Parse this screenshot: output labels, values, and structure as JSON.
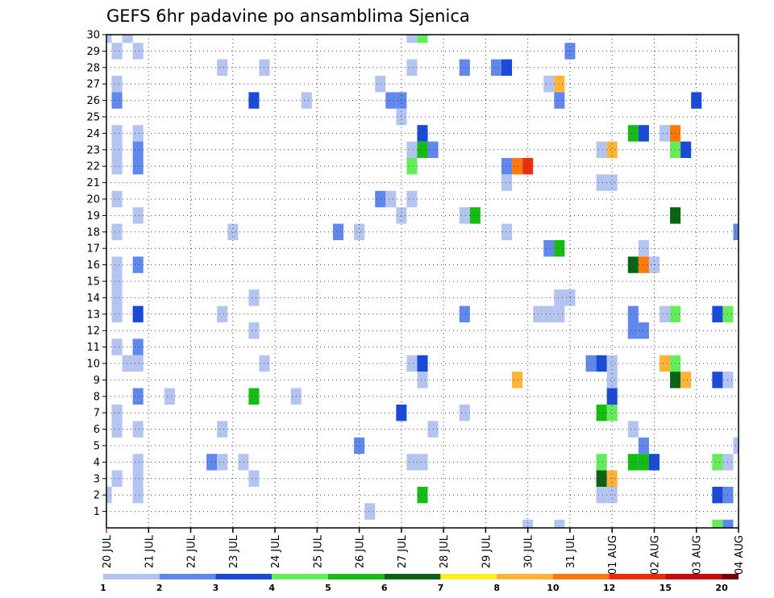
{
  "chart_data": {
    "type": "heatmap",
    "title": "GEFS 6hr padavine po ansamblima Sjenica",
    "xlabel": "",
    "ylabel": "",
    "x_tick_labels": [
      "20 JUL",
      "21 JUL",
      "22 JUL",
      "23 JUL",
      "24 JUL",
      "25 JUL",
      "26 JUL",
      "27 JUL",
      "28 JUL",
      "29 JUL",
      "30 JUL",
      "31 JUL",
      "01 AUG",
      "02 AUG",
      "03 AUG",
      "04 AUG"
    ],
    "y_tick_labels": [
      "1",
      "2",
      "3",
      "4",
      "5",
      "6",
      "7",
      "8",
      "9",
      "10",
      "11",
      "12",
      "13",
      "14",
      "15",
      "16",
      "17",
      "18",
      "19",
      "20",
      "21",
      "22",
      "23",
      "24",
      "25",
      "26",
      "27",
      "28",
      "29",
      "30"
    ],
    "xlim": [
      0,
      60
    ],
    "ylim": [
      0,
      30
    ],
    "x_unit": "6-hour step from 20 JUL 00Z",
    "grid": true,
    "levels": [
      1,
      2,
      3,
      4,
      5,
      6,
      7,
      8,
      10,
      12,
      15,
      20
    ],
    "colors": [
      "#b4c4f0",
      "#5f87ec",
      "#1a4ad8",
      "#64ec5a",
      "#14bc14",
      "#0a6414",
      "#fff01e",
      "#ffb437",
      "#ff780a",
      "#ea2e0e",
      "#c40c0c",
      "#780000"
    ],
    "colorbar_labels": [
      "1",
      "2",
      "3",
      "4",
      "5",
      "6",
      "7",
      "8",
      "10",
      "12",
      "15",
      "20"
    ],
    "cells": [
      [
        0,
        30,
        1
      ],
      [
        2,
        30,
        1
      ],
      [
        29,
        30,
        1
      ],
      [
        30,
        30,
        4
      ],
      [
        1,
        29,
        1
      ],
      [
        3,
        29,
        1
      ],
      [
        44,
        29,
        2
      ],
      [
        11,
        28,
        1
      ],
      [
        15,
        28,
        1
      ],
      [
        29,
        28,
        1
      ],
      [
        34,
        28,
        2
      ],
      [
        37,
        28,
        2
      ],
      [
        38,
        28,
        3
      ],
      [
        1,
        27,
        1
      ],
      [
        26,
        27,
        1
      ],
      [
        42,
        27,
        1
      ],
      [
        43,
        27,
        8
      ],
      [
        1,
        26,
        2
      ],
      [
        14,
        26,
        3
      ],
      [
        19,
        26,
        1
      ],
      [
        27,
        26,
        2
      ],
      [
        28,
        26,
        2
      ],
      [
        43,
        26,
        2
      ],
      [
        56,
        26,
        3
      ],
      [
        28,
        25,
        1
      ],
      [
        1,
        24,
        1
      ],
      [
        3,
        24,
        1
      ],
      [
        30,
        24,
        3
      ],
      [
        50,
        24,
        5
      ],
      [
        51,
        24,
        3
      ],
      [
        53,
        24,
        1
      ],
      [
        54,
        24,
        9
      ],
      [
        1,
        23,
        1
      ],
      [
        3,
        23,
        2
      ],
      [
        29,
        23,
        1
      ],
      [
        30,
        23,
        5
      ],
      [
        31,
        23,
        2
      ],
      [
        47,
        23,
        1
      ],
      [
        48,
        23,
        8
      ],
      [
        54,
        23,
        4
      ],
      [
        55,
        23,
        3
      ],
      [
        1,
        22,
        1
      ],
      [
        3,
        22,
        2
      ],
      [
        29,
        22,
        4
      ],
      [
        38,
        22,
        2
      ],
      [
        39,
        22,
        9
      ],
      [
        40,
        22,
        10
      ],
      [
        38,
        21,
        1
      ],
      [
        47,
        21,
        1
      ],
      [
        48,
        21,
        1
      ],
      [
        1,
        20,
        1
      ],
      [
        26,
        20,
        2
      ],
      [
        27,
        20,
        1
      ],
      [
        29,
        20,
        1
      ],
      [
        3,
        19,
        1
      ],
      [
        28,
        19,
        1
      ],
      [
        34,
        19,
        1
      ],
      [
        35,
        19,
        5
      ],
      [
        54,
        19,
        6
      ],
      [
        1,
        18,
        1
      ],
      [
        12,
        18,
        1
      ],
      [
        22,
        18,
        2
      ],
      [
        24,
        18,
        1
      ],
      [
        38,
        18,
        1
      ],
      [
        60,
        18,
        2
      ],
      [
        42,
        17,
        2
      ],
      [
        43,
        17,
        5
      ],
      [
        51,
        17,
        1
      ],
      [
        1,
        16,
        1
      ],
      [
        3,
        16,
        2
      ],
      [
        50,
        16,
        6
      ],
      [
        51,
        16,
        9
      ],
      [
        52,
        16,
        1
      ],
      [
        1,
        15,
        1
      ],
      [
        1,
        14,
        1
      ],
      [
        14,
        14,
        1
      ],
      [
        43,
        14,
        1
      ],
      [
        44,
        14,
        1
      ],
      [
        1,
        13,
        1
      ],
      [
        3,
        13,
        3
      ],
      [
        11,
        13,
        1
      ],
      [
        34,
        13,
        2
      ],
      [
        41,
        13,
        1
      ],
      [
        42,
        13,
        1
      ],
      [
        43,
        13,
        1
      ],
      [
        50,
        13,
        2
      ],
      [
        53,
        13,
        1
      ],
      [
        54,
        13,
        4
      ],
      [
        58,
        13,
        3
      ],
      [
        59,
        13,
        4
      ],
      [
        50,
        12,
        2
      ],
      [
        51,
        12,
        2
      ],
      [
        14,
        12,
        1
      ],
      [
        1,
        11,
        1
      ],
      [
        3,
        11,
        2
      ],
      [
        2,
        10,
        1
      ],
      [
        3,
        10,
        1
      ],
      [
        15,
        10,
        1
      ],
      [
        29,
        10,
        1
      ],
      [
        30,
        10,
        3
      ],
      [
        46,
        10,
        2
      ],
      [
        47,
        10,
        3
      ],
      [
        48,
        10,
        1
      ],
      [
        53,
        10,
        8
      ],
      [
        54,
        10,
        4
      ],
      [
        30,
        9,
        1
      ],
      [
        39,
        9,
        8
      ],
      [
        48,
        9,
        1
      ],
      [
        54,
        9,
        6
      ],
      [
        55,
        9,
        8
      ],
      [
        58,
        9,
        3
      ],
      [
        59,
        9,
        1
      ],
      [
        3,
        8,
        2
      ],
      [
        6,
        8,
        1
      ],
      [
        14,
        8,
        5
      ],
      [
        18,
        8,
        1
      ],
      [
        48,
        8,
        3
      ],
      [
        1,
        7,
        1
      ],
      [
        28,
        7,
        3
      ],
      [
        34,
        7,
        1
      ],
      [
        47,
        7,
        5
      ],
      [
        48,
        7,
        4
      ],
      [
        1,
        6,
        1
      ],
      [
        3,
        6,
        1
      ],
      [
        11,
        6,
        1
      ],
      [
        31,
        6,
        1
      ],
      [
        50,
        6,
        1
      ],
      [
        24,
        5,
        2
      ],
      [
        51,
        5,
        2
      ],
      [
        60,
        5,
        1
      ],
      [
        3,
        4,
        1
      ],
      [
        10,
        4,
        2
      ],
      [
        11,
        4,
        1
      ],
      [
        13,
        4,
        1
      ],
      [
        29,
        4,
        1
      ],
      [
        30,
        4,
        1
      ],
      [
        47,
        4,
        4
      ],
      [
        50,
        4,
        5
      ],
      [
        51,
        4,
        5
      ],
      [
        52,
        4,
        3
      ],
      [
        58,
        4,
        4
      ],
      [
        59,
        4,
        1
      ],
      [
        1,
        3,
        1
      ],
      [
        3,
        3,
        1
      ],
      [
        14,
        3,
        1
      ],
      [
        47,
        3,
        6
      ],
      [
        48,
        3,
        8
      ],
      [
        0,
        2,
        1
      ],
      [
        3,
        2,
        1
      ],
      [
        30,
        2,
        5
      ],
      [
        47,
        2,
        1
      ],
      [
        48,
        2,
        1
      ],
      [
        58,
        2,
        3
      ],
      [
        59,
        2,
        2
      ],
      [
        25,
        1,
        1
      ],
      [
        40,
        0,
        1
      ],
      [
        43,
        0,
        1
      ],
      [
        58,
        0,
        4
      ],
      [
        59,
        0,
        2
      ]
    ]
  }
}
